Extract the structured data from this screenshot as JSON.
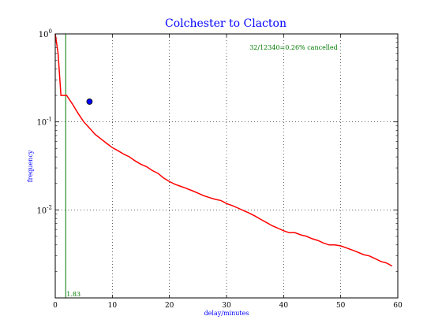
{
  "chart_data": {
    "type": "line",
    "title": "Colchester to Clacton",
    "xlabel": "delay/minutes",
    "ylabel": "frequency",
    "xlim": [
      0,
      60
    ],
    "ylim": [
      0.001,
      1
    ],
    "yscale": "log",
    "grid": true,
    "x_ticks": [
      0,
      10,
      20,
      30,
      40,
      50,
      60
    ],
    "x_tick_labels": [
      "0",
      "10",
      "20",
      "30",
      "40",
      "50",
      "60"
    ],
    "y_ticks": [
      1,
      0.1,
      0.01
    ],
    "y_tick_labels": [
      {
        "base": "10",
        "exp": "0"
      },
      {
        "base": "10",
        "exp": "-1"
      },
      {
        "base": "10",
        "exp": "-2"
      }
    ],
    "annotation": "32/12340=0.26% cancelled",
    "marker_line": {
      "x": 1.83,
      "label": "1.83",
      "color": "#007a00"
    },
    "point": {
      "x": 6,
      "y": 0.17,
      "color": "#0000ff"
    },
    "colors": {
      "title": "#0000ff",
      "labels": "#0000ff",
      "series": "#ff0000",
      "annotation": "#007a00"
    },
    "series": [
      {
        "color": "#ff0000",
        "x": [
          0,
          0.5,
          1,
          1.5,
          2,
          3,
          4,
          5,
          6,
          7,
          8,
          9,
          10,
          11,
          12,
          13,
          14,
          15,
          16,
          17,
          18,
          19,
          20,
          21,
          22,
          23,
          24,
          25,
          26,
          27,
          28,
          29,
          30,
          31,
          32,
          33,
          34,
          35,
          36,
          37,
          38,
          39,
          40,
          41,
          42,
          43,
          44,
          45,
          46,
          47,
          48,
          49,
          50,
          51,
          52,
          53,
          54,
          55,
          56,
          57,
          58,
          59
        ],
        "y": [
          1.0,
          0.6,
          0.2,
          0.2,
          0.2,
          0.16,
          0.125,
          0.1,
          0.085,
          0.072,
          0.064,
          0.057,
          0.051,
          0.047,
          0.043,
          0.04,
          0.036,
          0.033,
          0.031,
          0.028,
          0.026,
          0.023,
          0.021,
          0.0195,
          0.0185,
          0.0175,
          0.0165,
          0.0155,
          0.0145,
          0.0138,
          0.0132,
          0.0128,
          0.0118,
          0.0112,
          0.0105,
          0.0098,
          0.0092,
          0.0085,
          0.0078,
          0.0072,
          0.0066,
          0.0062,
          0.0058,
          0.0055,
          0.0055,
          0.0052,
          0.005,
          0.0047,
          0.0045,
          0.0042,
          0.004,
          0.004,
          0.0039,
          0.0037,
          0.0035,
          0.0033,
          0.0031,
          0.003,
          0.0028,
          0.0026,
          0.0025,
          0.0023
        ]
      }
    ]
  }
}
